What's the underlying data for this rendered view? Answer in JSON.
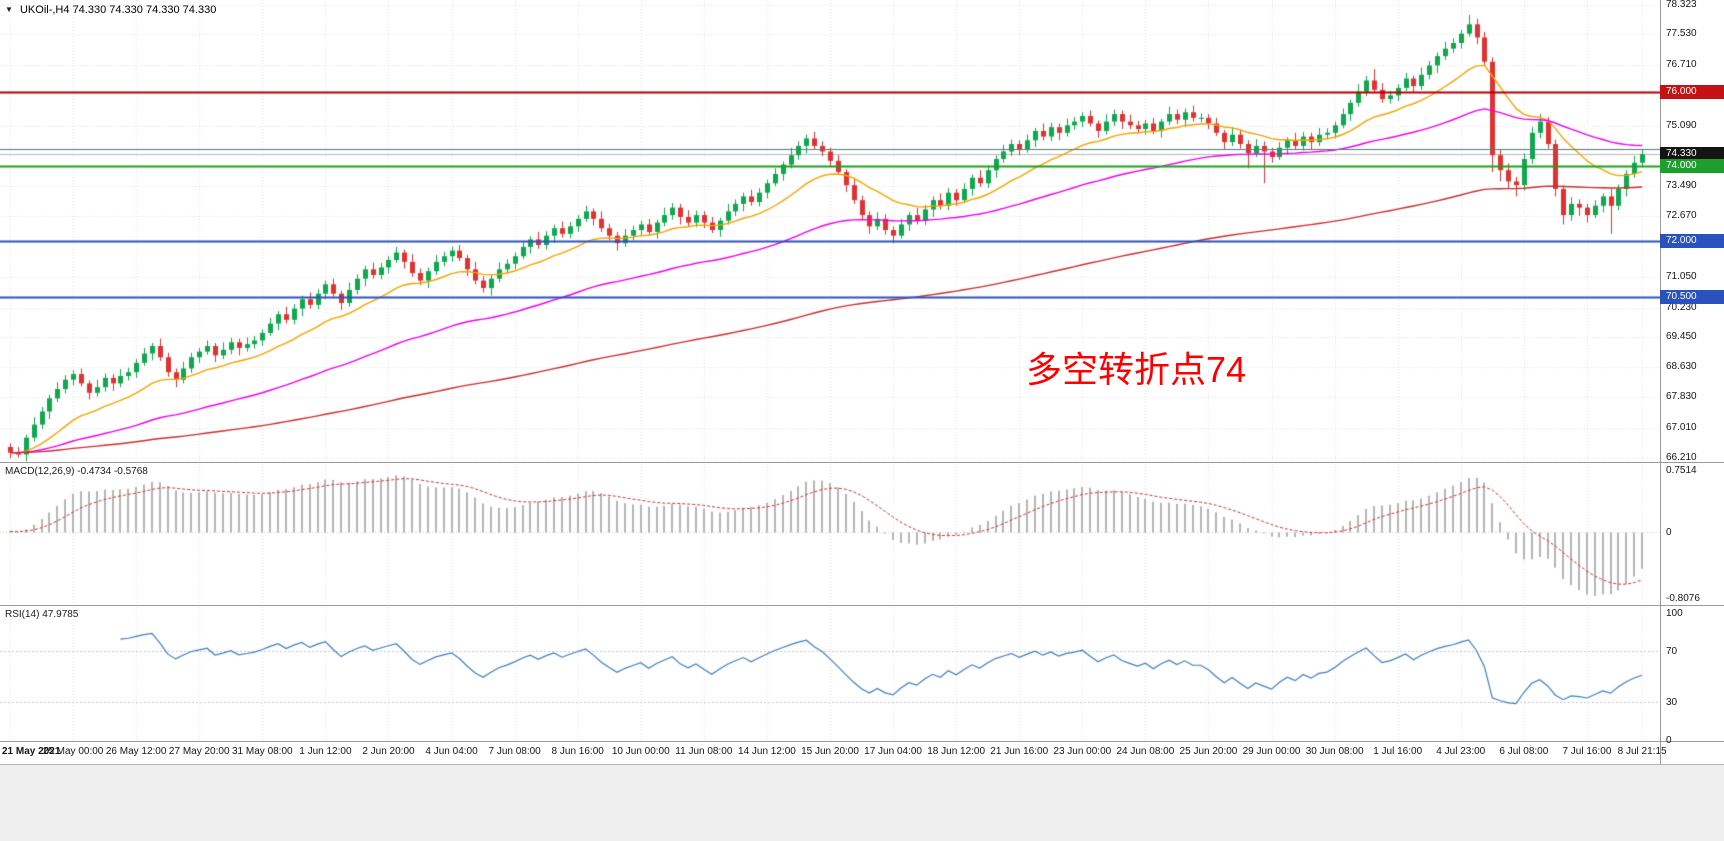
{
  "header": {
    "menu_icon": "▼",
    "symbol_period": "UKOil-,H4",
    "quotes": "74.330 74.330 74.330 74.330"
  },
  "indicators": {
    "macd_label": "MACD(12,26,9)",
    "macd_values": "-0.4734 -0.5768",
    "rsi_label": "RSI(14)",
    "rsi_value": "47.9785"
  },
  "annotation": {
    "text": "多空转折点74",
    "color": "#ff0000"
  },
  "main_chart": {
    "axis_labels": [
      "78.323",
      "77.530",
      "76.710",
      "75.090",
      "73.490",
      "72.670",
      "71.050",
      "70.230",
      "69.450",
      "68.630",
      "67.830",
      "67.010",
      "66.210"
    ],
    "badges": [
      {
        "text": "76.000",
        "price": 76.0,
        "color": "#c41212"
      },
      {
        "text": "74.330",
        "price": 74.33,
        "color": "#141414"
      },
      {
        "text": "74.000",
        "price": 74.0,
        "color": "#1e9e2a"
      },
      {
        "text": "72.000",
        "price": 72.0,
        "color": "#2a52be"
      },
      {
        "text": "70.500",
        "price": 70.5,
        "color": "#2a52be"
      }
    ]
  },
  "chart_data": {
    "type": "candlestick",
    "symbol": "UKOil",
    "timeframe": "H4",
    "title": "UKOil-,H4 74.330 74.330 74.330 74.330",
    "ylim": [
      66.1,
      78.45
    ],
    "current_price": 74.33,
    "up_color": "#0fa84e",
    "down_color": "#e03232",
    "grid_color": "#e6e6e6",
    "x_labels": [
      "21 May 2021",
      "25 May 00:00",
      "26 May 12:00",
      "27 May 20:00",
      "31 May 08:00",
      "1 Jun 12:00",
      "2 Jun 20:00",
      "4 Jun 04:00",
      "7 Jun 08:00",
      "8 Jun 16:00",
      "10 Jun 00:00",
      "11 Jun 08:00",
      "14 Jun 12:00",
      "15 Jun 20:00",
      "17 Jun 04:00",
      "18 Jun 12:00",
      "21 Jun 16:00",
      "23 Jun 00:00",
      "24 Jun 08:00",
      "25 Jun 20:00",
      "29 Jun 00:00",
      "30 Jun 08:00",
      "1 Jul 16:00",
      "4 Jul 23:00",
      "6 Jul 08:00",
      "7 Jul 16:00",
      "8 Jul 21:15"
    ],
    "levels": [
      {
        "price": 76.0,
        "color": "#b30000",
        "width": 2
      },
      {
        "price": 74.47,
        "color": "#527a7a",
        "width": 1
      },
      {
        "price": 74.0,
        "color": "#1e9e1e",
        "width": 2
      },
      {
        "price": 72.0,
        "color": "#2a52be",
        "width": 2
      },
      {
        "price": 70.5,
        "color": "#2a52be",
        "width": 2
      }
    ],
    "bid_line": {
      "price": 74.33,
      "color": "#b9b9b9"
    },
    "moving_averages": [
      {
        "period": 16,
        "color": "#f5a300"
      },
      {
        "period": 55,
        "color": "#ee00ee"
      },
      {
        "period": 160,
        "color": "#c62f2f"
      }
    ],
    "candles": [
      [
        66.5,
        66.6,
        66.2,
        66.35
      ],
      [
        66.35,
        66.5,
        66.22,
        66.3
      ],
      [
        66.3,
        66.83,
        66.12,
        66.75
      ],
      [
        66.75,
        67.3,
        66.65,
        67.1
      ],
      [
        67.1,
        67.57,
        66.98,
        67.45
      ],
      [
        67.45,
        67.9,
        67.25,
        67.8
      ],
      [
        67.8,
        68.23,
        67.7,
        68.05
      ],
      [
        68.05,
        68.42,
        67.93,
        68.3
      ],
      [
        68.3,
        68.55,
        68.15,
        68.45
      ],
      [
        68.45,
        68.6,
        68.12,
        68.2
      ],
      [
        68.2,
        68.28,
        67.77,
        67.95
      ],
      [
        67.95,
        68.3,
        67.85,
        68.1
      ],
      [
        68.1,
        68.47,
        67.98,
        68.35
      ],
      [
        68.35,
        68.45,
        68.0,
        68.2
      ],
      [
        68.2,
        68.58,
        68.1,
        68.4
      ],
      [
        68.4,
        68.62,
        68.28,
        68.5
      ],
      [
        68.5,
        68.85,
        68.35,
        68.75
      ],
      [
        68.75,
        69.15,
        68.67,
        69.0
      ],
      [
        69.0,
        69.28,
        68.82,
        69.2
      ],
      [
        69.2,
        69.4,
        68.8,
        68.9
      ],
      [
        68.9,
        69.02,
        68.38,
        68.5
      ],
      [
        68.5,
        68.6,
        68.1,
        68.3
      ],
      [
        68.3,
        68.78,
        68.2,
        68.6
      ],
      [
        68.6,
        69.02,
        68.48,
        68.9
      ],
      [
        68.9,
        69.15,
        68.75,
        69.05
      ],
      [
        69.05,
        69.35,
        68.97,
        69.2
      ],
      [
        69.2,
        69.28,
        68.77,
        68.95
      ],
      [
        68.95,
        69.3,
        68.85,
        69.1
      ],
      [
        69.1,
        69.42,
        68.98,
        69.3
      ],
      [
        69.3,
        69.4,
        68.95,
        69.15
      ],
      [
        69.15,
        69.43,
        69.05,
        69.25
      ],
      [
        69.25,
        69.47,
        69.13,
        69.35
      ],
      [
        69.35,
        69.65,
        69.2,
        69.55
      ],
      [
        69.55,
        69.95,
        69.47,
        69.8
      ],
      [
        69.8,
        70.13,
        69.62,
        70.05
      ],
      [
        70.05,
        70.25,
        69.8,
        69.9
      ],
      [
        69.9,
        70.32,
        69.78,
        70.2
      ],
      [
        70.2,
        70.55,
        70.0,
        70.45
      ],
      [
        70.45,
        70.63,
        70.2,
        70.3
      ],
      [
        70.3,
        70.72,
        70.18,
        70.6
      ],
      [
        70.6,
        70.95,
        70.45,
        70.85
      ],
      [
        70.85,
        71.0,
        70.52,
        70.6
      ],
      [
        70.6,
        70.68,
        70.17,
        70.35
      ],
      [
        70.35,
        70.9,
        70.25,
        70.7
      ],
      [
        70.7,
        71.12,
        70.58,
        71.0
      ],
      [
        71.0,
        71.35,
        70.8,
        71.25
      ],
      [
        71.25,
        71.43,
        71.0,
        71.1
      ],
      [
        71.1,
        71.42,
        70.98,
        71.3
      ],
      [
        71.3,
        71.6,
        71.15,
        71.5
      ],
      [
        71.5,
        71.85,
        71.42,
        71.7
      ],
      [
        71.7,
        71.78,
        71.27,
        71.45
      ],
      [
        71.45,
        71.65,
        71.05,
        71.15
      ],
      [
        71.15,
        71.27,
        70.83,
        70.95
      ],
      [
        70.95,
        71.3,
        70.75,
        71.2
      ],
      [
        71.2,
        71.63,
        71.1,
        71.45
      ],
      [
        71.45,
        71.72,
        71.33,
        71.6
      ],
      [
        71.6,
        71.85,
        71.45,
        71.75
      ],
      [
        71.75,
        71.9,
        71.47,
        71.55
      ],
      [
        71.55,
        71.63,
        71.07,
        71.25
      ],
      [
        71.25,
        71.45,
        70.85,
        70.95
      ],
      [
        70.95,
        71.07,
        70.63,
        70.75
      ],
      [
        70.75,
        71.1,
        70.55,
        71.0
      ],
      [
        71.0,
        71.43,
        70.9,
        71.25
      ],
      [
        71.25,
        71.52,
        71.13,
        71.4
      ],
      [
        71.4,
        71.7,
        71.25,
        71.6
      ],
      [
        71.6,
        72.0,
        71.52,
        71.85
      ],
      [
        71.85,
        72.13,
        71.67,
        72.05
      ],
      [
        72.05,
        72.25,
        71.8,
        71.9
      ],
      [
        71.9,
        72.27,
        71.78,
        72.15
      ],
      [
        72.15,
        72.45,
        71.95,
        72.35
      ],
      [
        72.35,
        72.53,
        72.1,
        72.2
      ],
      [
        72.2,
        72.52,
        72.08,
        72.4
      ],
      [
        72.4,
        72.7,
        72.25,
        72.6
      ],
      [
        72.6,
        72.95,
        72.52,
        72.8
      ],
      [
        72.8,
        72.88,
        72.42,
        72.6
      ],
      [
        72.6,
        72.8,
        72.25,
        72.35
      ],
      [
        72.35,
        72.47,
        72.03,
        72.15
      ],
      [
        72.15,
        72.25,
        71.75,
        71.95
      ],
      [
        71.95,
        72.33,
        71.85,
        72.15
      ],
      [
        72.15,
        72.42,
        72.03,
        72.3
      ],
      [
        72.3,
        72.55,
        72.15,
        72.45
      ],
      [
        72.45,
        72.6,
        72.17,
        72.25
      ],
      [
        72.25,
        72.58,
        72.07,
        72.5
      ],
      [
        72.5,
        72.9,
        72.4,
        72.7
      ],
      [
        72.7,
        73.02,
        72.58,
        72.9
      ],
      [
        72.9,
        73.0,
        72.45,
        72.65
      ],
      [
        72.65,
        72.83,
        72.4,
        72.5
      ],
      [
        72.5,
        72.82,
        72.38,
        72.7
      ],
      [
        72.7,
        72.8,
        72.35,
        72.5
      ],
      [
        72.5,
        72.65,
        72.22,
        72.3
      ],
      [
        72.3,
        72.63,
        72.12,
        72.55
      ],
      [
        72.55,
        73.0,
        72.45,
        72.8
      ],
      [
        72.8,
        73.12,
        72.68,
        73.0
      ],
      [
        73.0,
        73.3,
        72.8,
        73.2
      ],
      [
        73.2,
        73.38,
        72.95,
        73.05
      ],
      [
        73.05,
        73.42,
        72.93,
        73.3
      ],
      [
        73.3,
        73.65,
        73.15,
        73.55
      ],
      [
        73.55,
        73.95,
        73.47,
        73.8
      ],
      [
        73.8,
        74.13,
        73.62,
        74.05
      ],
      [
        74.05,
        74.5,
        73.95,
        74.3
      ],
      [
        74.3,
        74.67,
        74.18,
        74.55
      ],
      [
        74.55,
        74.85,
        74.35,
        74.75
      ],
      [
        74.75,
        74.93,
        74.45,
        74.55
      ],
      [
        74.55,
        74.67,
        74.28,
        74.4
      ],
      [
        74.4,
        74.5,
        74.0,
        74.15
      ],
      [
        74.15,
        74.3,
        73.77,
        73.85
      ],
      [
        73.85,
        73.93,
        73.32,
        73.5
      ],
      [
        73.5,
        73.7,
        73.0,
        73.1
      ],
      [
        73.1,
        73.22,
        72.58,
        72.7
      ],
      [
        72.7,
        72.8,
        72.2,
        72.4
      ],
      [
        72.4,
        72.78,
        72.3,
        72.6
      ],
      [
        72.6,
        72.72,
        72.18,
        72.3
      ],
      [
        72.3,
        72.4,
        71.95,
        72.15
      ],
      [
        72.15,
        72.6,
        72.07,
        72.45
      ],
      [
        72.45,
        72.78,
        72.27,
        72.7
      ],
      [
        72.7,
        72.9,
        72.45,
        72.55
      ],
      [
        72.55,
        72.97,
        72.43,
        72.85
      ],
      [
        72.85,
        73.2,
        72.65,
        73.1
      ],
      [
        73.1,
        73.28,
        72.85,
        72.95
      ],
      [
        72.95,
        73.42,
        72.83,
        73.3
      ],
      [
        73.3,
        73.4,
        72.95,
        73.1
      ],
      [
        73.1,
        73.55,
        73.02,
        73.4
      ],
      [
        73.4,
        73.78,
        73.22,
        73.7
      ],
      [
        73.7,
        73.9,
        73.45,
        73.55
      ],
      [
        73.55,
        74.02,
        73.43,
        73.9
      ],
      [
        73.9,
        74.3,
        73.7,
        74.2
      ],
      [
        74.2,
        74.58,
        74.1,
        74.4
      ],
      [
        74.4,
        74.72,
        74.28,
        74.6
      ],
      [
        74.6,
        74.7,
        74.3,
        74.45
      ],
      [
        74.45,
        74.85,
        74.37,
        74.7
      ],
      [
        74.7,
        75.03,
        74.52,
        74.95
      ],
      [
        74.95,
        75.15,
        74.7,
        74.8
      ],
      [
        74.8,
        75.17,
        74.68,
        75.05
      ],
      [
        75.05,
        75.15,
        74.7,
        74.9
      ],
      [
        74.9,
        75.28,
        74.8,
        75.1
      ],
      [
        75.1,
        75.32,
        74.98,
        75.2
      ],
      [
        75.2,
        75.45,
        75.05,
        75.35
      ],
      [
        75.35,
        75.5,
        75.07,
        75.15
      ],
      [
        75.15,
        75.23,
        74.77,
        74.95
      ],
      [
        74.95,
        75.4,
        74.85,
        75.2
      ],
      [
        75.2,
        75.52,
        75.08,
        75.4
      ],
      [
        75.4,
        75.5,
        75.0,
        75.2
      ],
      [
        75.2,
        75.38,
        75.0,
        75.1
      ],
      [
        75.1,
        75.22,
        74.88,
        75.0
      ],
      [
        75.0,
        75.25,
        74.85,
        75.15
      ],
      [
        75.15,
        75.3,
        74.87,
        74.95
      ],
      [
        74.95,
        75.28,
        74.77,
        75.2
      ],
      [
        75.2,
        75.6,
        75.1,
        75.4
      ],
      [
        75.4,
        75.52,
        75.13,
        75.25
      ],
      [
        75.25,
        75.55,
        75.05,
        75.45
      ],
      [
        75.45,
        75.63,
        75.2,
        75.3
      ],
      [
        75.3,
        75.42,
        75.18,
        75.3
      ],
      [
        75.3,
        75.4,
        75.0,
        75.15
      ],
      [
        75.15,
        75.3,
        74.82,
        74.9
      ],
      [
        74.9,
        74.98,
        74.47,
        74.65
      ],
      [
        74.65,
        75.05,
        74.55,
        74.85
      ],
      [
        74.85,
        74.97,
        74.48,
        74.6
      ],
      [
        74.6,
        74.7,
        73.95,
        74.35
      ],
      [
        74.35,
        74.73,
        74.25,
        74.55
      ],
      [
        74.55,
        74.67,
        73.55,
        74.4
      ],
      [
        74.4,
        74.5,
        74.1,
        74.25
      ],
      [
        74.25,
        74.65,
        74.17,
        74.5
      ],
      [
        74.5,
        74.78,
        74.32,
        74.7
      ],
      [
        74.7,
        74.9,
        74.45,
        74.55
      ],
      [
        74.55,
        74.92,
        74.43,
        74.8
      ],
      [
        74.8,
        74.9,
        74.45,
        74.65
      ],
      [
        74.65,
        75.03,
        74.55,
        74.85
      ],
      [
        74.85,
        75.02,
        74.73,
        74.9
      ],
      [
        74.9,
        75.2,
        74.75,
        75.1
      ],
      [
        75.1,
        75.55,
        75.02,
        75.4
      ],
      [
        75.4,
        75.78,
        75.22,
        75.7
      ],
      [
        75.7,
        76.2,
        75.6,
        76.0
      ],
      [
        76.0,
        76.42,
        75.88,
        76.3
      ],
      [
        76.3,
        76.6,
        75.95,
        76.05
      ],
      [
        76.05,
        76.23,
        75.7,
        75.8
      ],
      [
        75.8,
        76.02,
        75.68,
        75.9
      ],
      [
        75.9,
        76.2,
        75.75,
        76.1
      ],
      [
        76.1,
        76.5,
        76.02,
        76.35
      ],
      [
        76.35,
        76.43,
        75.97,
        76.15
      ],
      [
        76.15,
        76.65,
        76.05,
        76.45
      ],
      [
        76.45,
        76.82,
        76.33,
        76.7
      ],
      [
        76.7,
        77.05,
        76.5,
        76.95
      ],
      [
        76.95,
        77.33,
        76.85,
        77.15
      ],
      [
        77.15,
        77.42,
        77.03,
        77.3
      ],
      [
        77.3,
        77.65,
        77.15,
        77.55
      ],
      [
        77.55,
        78.05,
        77.47,
        77.8
      ],
      [
        77.8,
        77.95,
        77.27,
        77.45
      ],
      [
        77.45,
        77.6,
        76.7,
        76.8
      ],
      [
        76.8,
        76.92,
        73.85,
        74.3
      ],
      [
        74.3,
        74.45,
        73.6,
        73.9
      ],
      [
        73.9,
        74.08,
        73.4,
        73.6
      ],
      [
        73.6,
        73.72,
        73.2,
        73.5
      ],
      [
        73.5,
        74.35,
        73.35,
        74.2
      ],
      [
        74.2,
        75.05,
        74.07,
        74.9
      ],
      [
        74.9,
        75.4,
        74.75,
        75.2
      ],
      [
        75.2,
        75.32,
        74.48,
        74.6
      ],
      [
        74.6,
        74.72,
        73.2,
        73.4
      ],
      [
        73.4,
        73.5,
        72.45,
        72.7
      ],
      [
        72.7,
        73.18,
        72.55,
        73.0
      ],
      [
        73.0,
        73.12,
        72.68,
        72.9
      ],
      [
        72.9,
        73.0,
        72.5,
        72.7
      ],
      [
        72.7,
        73.1,
        72.62,
        72.95
      ],
      [
        72.95,
        73.28,
        72.77,
        73.2
      ],
      [
        73.2,
        73.4,
        72.2,
        72.95
      ],
      [
        72.95,
        73.52,
        72.83,
        73.4
      ],
      [
        73.4,
        73.9,
        73.2,
        73.8
      ],
      [
        73.8,
        74.28,
        73.7,
        74.1
      ],
      [
        74.1,
        74.45,
        73.98,
        74.33
      ]
    ],
    "macd": {
      "params": [
        12,
        26,
        9
      ],
      "display_values": [
        -0.4734,
        -0.5768
      ],
      "axis_labels": [
        "0.7514",
        "0",
        "-0.8076"
      ],
      "ylim": [
        -0.88,
        0.82
      ],
      "histogram_color": "#b5b5b5",
      "signal_color": "#d93030"
    },
    "rsi": {
      "period": 14,
      "display_value": 47.9785,
      "axis_labels": [
        "100",
        "70",
        "30",
        "0"
      ],
      "levels": [
        70,
        30
      ],
      "ylim": [
        0,
        105
      ],
      "line_color": "#3d7fbf"
    }
  }
}
